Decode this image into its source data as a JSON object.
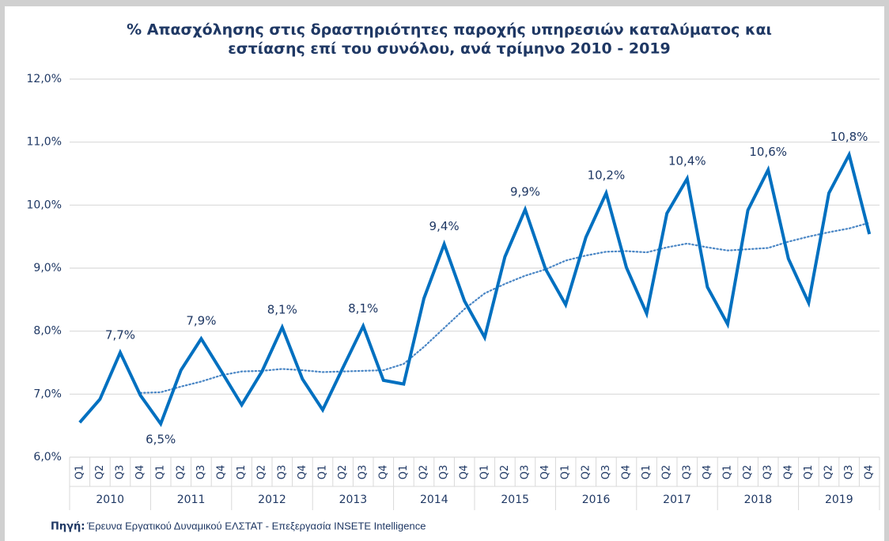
{
  "chart_data": {
    "type": "line",
    "title_lines": [
      "% Απασχόλησης στις δραστηριότητες παροχής υπηρεσιών καταλύματος και",
      "εστίασης επί του συνόλου, ανά τρίμηνο 2010 - 2019"
    ],
    "categories": [
      "Q1",
      "Q2",
      "Q3",
      "Q4",
      "Q1",
      "Q2",
      "Q3",
      "Q4",
      "Q1",
      "Q2",
      "Q3",
      "Q4",
      "Q1",
      "Q2",
      "Q3",
      "Q4",
      "Q1",
      "Q2",
      "Q3",
      "Q4",
      "Q1",
      "Q2",
      "Q3",
      "Q4",
      "Q1",
      "Q2",
      "Q3",
      "Q4",
      "Q1",
      "Q2",
      "Q3",
      "Q4",
      "Q1",
      "Q2",
      "Q3",
      "Q4",
      "Q1",
      "Q2",
      "Q3",
      "Q4"
    ],
    "years": [
      "2010",
      "2011",
      "2012",
      "2013",
      "2014",
      "2015",
      "2016",
      "2017",
      "2018",
      "2019"
    ],
    "series": [
      {
        "color": "#0070c0",
        "values": [
          6.55,
          6.92,
          7.66,
          6.98,
          6.53,
          7.38,
          7.88,
          7.36,
          6.83,
          7.36,
          8.06,
          7.24,
          6.75,
          7.42,
          8.08,
          7.22,
          7.16,
          8.52,
          9.38,
          8.48,
          7.9,
          9.18,
          9.93,
          8.99,
          8.42,
          9.49,
          10.19,
          9.01,
          8.28,
          9.87,
          10.42,
          8.7,
          8.11,
          9.92,
          10.56,
          9.15,
          8.45,
          10.19,
          10.8,
          9.54
        ],
        "value_labels": [
          null,
          null,
          "7,7%",
          null,
          "6,5%",
          null,
          "7,9%",
          null,
          null,
          null,
          "8,1%",
          null,
          null,
          null,
          "8,1%",
          null,
          null,
          null,
          "9,4%",
          null,
          null,
          null,
          "9,9%",
          null,
          null,
          null,
          "10,2%",
          null,
          null,
          null,
          "10,4%",
          null,
          null,
          null,
          "10,6%",
          null,
          null,
          null,
          "10,8%",
          null
        ]
      }
    ],
    "trendline": {
      "color": "#4a86c5",
      "values": [
        null,
        null,
        null,
        7.02,
        7.03,
        7.12,
        7.2,
        7.3,
        7.36,
        7.37,
        7.4,
        7.38,
        7.35,
        7.36,
        7.37,
        7.38,
        7.48,
        7.75,
        8.05,
        8.35,
        8.6,
        8.75,
        8.88,
        8.98,
        9.12,
        9.2,
        9.26,
        9.27,
        9.25,
        9.33,
        9.39,
        9.33,
        9.28,
        9.3,
        9.32,
        9.42,
        9.5,
        9.57,
        9.63,
        9.72
      ]
    },
    "ylim": [
      6,
      12
    ],
    "yticks": [
      {
        "value": 6,
        "label": "6,0%"
      },
      {
        "value": 7,
        "label": "7,0%"
      },
      {
        "value": 8,
        "label": "8,0%"
      },
      {
        "value": 9,
        "label": "9,0%"
      },
      {
        "value": 10,
        "label": "10,0%"
      },
      {
        "value": 11,
        "label": "11,0%"
      },
      {
        "value": 12,
        "label": "12,0%"
      }
    ],
    "grid": true,
    "source_label": "Πηγή:",
    "source": "Έρευνα Εργατικού Δυναμικού ΕΛΣΤΑΤ - Επεξεργασία INSETE Intelligence"
  }
}
